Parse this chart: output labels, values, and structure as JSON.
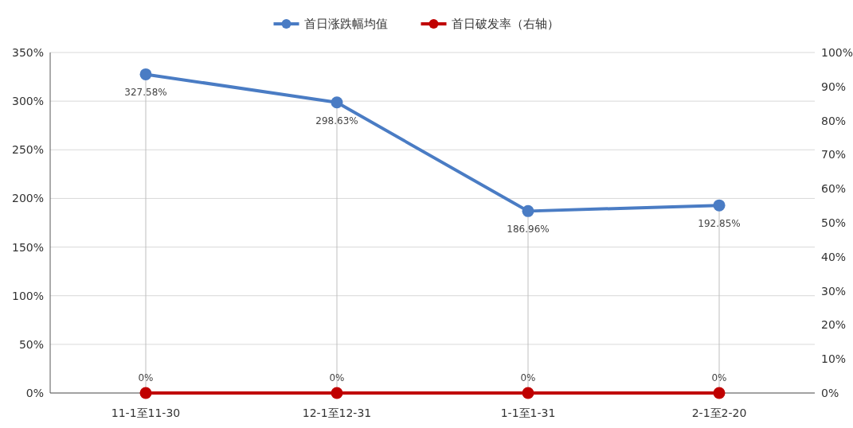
{
  "chart_data": {
    "type": "line",
    "categories": [
      "11-1至11-30",
      "12-1至12-31",
      "1-1至1-31",
      "2-1至2-20"
    ],
    "series": [
      {
        "name": "首日涨跌幅均值",
        "color": "#4a7cc4",
        "values": [
          327.58,
          298.63,
          186.96,
          192.85
        ],
        "value_labels": [
          "327.58%",
          "298.63%",
          "186.96%",
          "192.85%"
        ],
        "marker": "circle"
      },
      {
        "name": "首日破发率（右轴）",
        "color": "#c00000",
        "axis": "y2",
        "values": [
          0,
          0,
          0,
          0
        ],
        "value_labels": [
          "0%",
          "0%",
          "0%",
          "0%"
        ],
        "marker": "circle"
      }
    ],
    "ylim": [
      0,
      350
    ],
    "yticks": [
      {
        "value": 0,
        "label": "0%"
      },
      {
        "value": 50,
        "label": "50%"
      },
      {
        "value": 100,
        "label": "100%"
      },
      {
        "value": 150,
        "label": "150%"
      },
      {
        "value": 200,
        "label": "200%"
      },
      {
        "value": 250,
        "label": "250%"
      },
      {
        "value": 300,
        "label": "300%"
      },
      {
        "value": 350,
        "label": "350%"
      }
    ],
    "y2lim": [
      0,
      100
    ],
    "y2ticks": [
      {
        "value": 0,
        "label": "0%"
      },
      {
        "value": 10,
        "label": "10%"
      },
      {
        "value": 20,
        "label": "20%"
      },
      {
        "value": 30,
        "label": "30%"
      },
      {
        "value": 40,
        "label": "40%"
      },
      {
        "value": 50,
        "label": "50%"
      },
      {
        "value": 60,
        "label": "60%"
      },
      {
        "value": 70,
        "label": "70%"
      },
      {
        "value": 80,
        "label": "80%"
      },
      {
        "value": 90,
        "label": "90%"
      },
      {
        "value": 100,
        "label": "100%"
      }
    ],
    "grid": true,
    "legend": "top"
  }
}
